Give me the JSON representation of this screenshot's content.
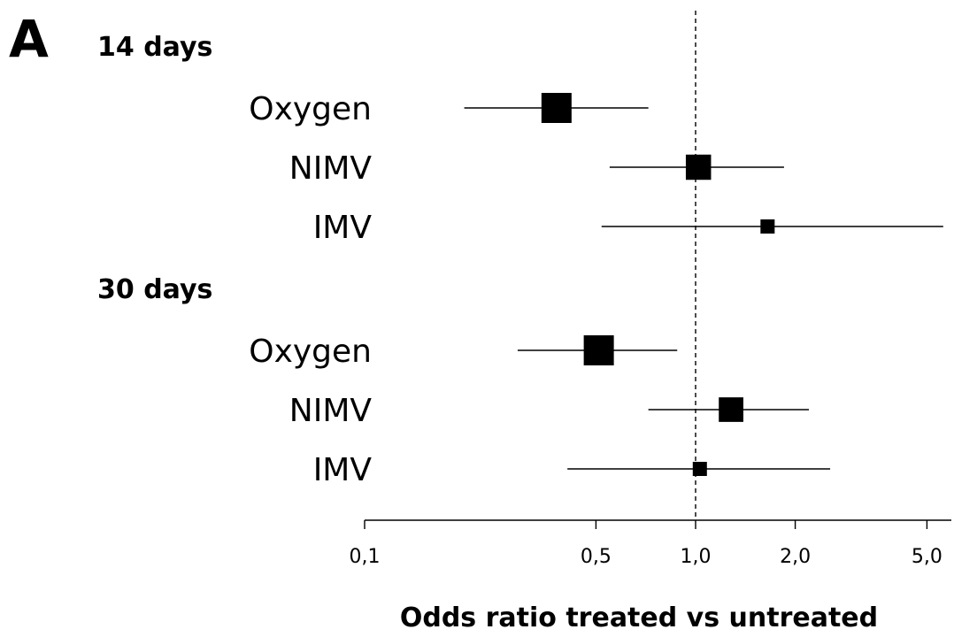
{
  "panel_label": "A",
  "chart_data": {
    "type": "forest",
    "scale": "log",
    "xlabel": "Odds ratio treated vs untreated",
    "xlim": [
      0.1,
      5.8
    ],
    "reference_line": 1.0,
    "ticks": [
      {
        "value": 0.1,
        "label": "0,1"
      },
      {
        "value": 0.5,
        "label": "0,5"
      },
      {
        "value": 1.0,
        "label": "1,0"
      },
      {
        "value": 2.0,
        "label": "2,0"
      },
      {
        "value": 5.0,
        "label": "5,0"
      }
    ],
    "groups": [
      {
        "title": "14 days",
        "rows": [
          {
            "label": "Oxygen",
            "or": 0.38,
            "ci_low": 0.2,
            "ci_high": 0.72,
            "weight": 1.0
          },
          {
            "label": "NIMV",
            "or": 1.02,
            "ci_low": 0.55,
            "ci_high": 1.85,
            "weight": 0.78
          },
          {
            "label": "IMV",
            "or": 1.65,
            "ci_low": 0.52,
            "ci_high": 5.6,
            "weight": 0.28
          }
        ]
      },
      {
        "title": "30 days",
        "rows": [
          {
            "label": "Oxygen",
            "or": 0.51,
            "ci_low": 0.29,
            "ci_high": 0.88,
            "weight": 1.0
          },
          {
            "label": "NIMV",
            "or": 1.28,
            "ci_low": 0.72,
            "ci_high": 2.2,
            "weight": 0.75
          },
          {
            "label": "IMV",
            "or": 1.03,
            "ci_low": 0.41,
            "ci_high": 2.55,
            "weight": 0.28
          }
        ]
      }
    ]
  }
}
